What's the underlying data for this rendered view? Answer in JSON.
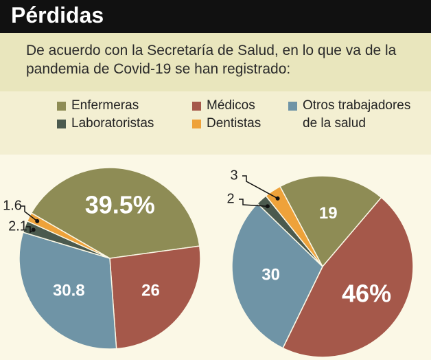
{
  "header": {
    "title": "Pérdidas",
    "subtitle": "De acuerdo con la Secretaría de Salud, en lo que va de la pandemia de Covid-19 se han registrado:"
  },
  "chart_data": [
    {
      "type": "pie",
      "categories": [
        "Enfermeras",
        "Médicos",
        "Otros trabajadores de la salud",
        "Laboratoristas",
        "Dentistas"
      ],
      "colors": [
        "#8e8c55",
        "#a5584a",
        "#6f94a6",
        "#4b5a4e",
        "#eea23a"
      ],
      "values": [
        39.5,
        26,
        30.8,
        2.1,
        1.6
      ],
      "value_labels": [
        "39.5%",
        "26",
        "30.8",
        "2.1",
        "1.6"
      ]
    },
    {
      "type": "pie",
      "categories": [
        "Enfermeras",
        "Médicos",
        "Otros trabajadores de la salud",
        "Laboratoristas",
        "Dentistas"
      ],
      "colors": [
        "#8e8c55",
        "#a5584a",
        "#6f94a6",
        "#4b5a4e",
        "#eea23a"
      ],
      "values": [
        19,
        46,
        30,
        2,
        3
      ],
      "value_labels": [
        "19",
        "46%",
        "30",
        "2",
        "3"
      ]
    }
  ]
}
